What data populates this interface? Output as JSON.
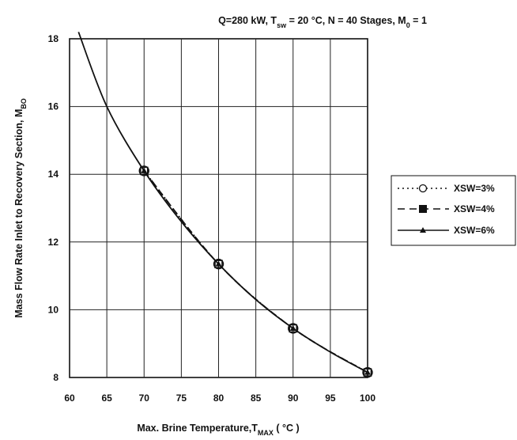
{
  "chart_data": {
    "type": "line",
    "title_parts": {
      "q": "Q=280 kW, T",
      "q_sub": "sw",
      "mid": " = 20 °C, N = 40 Stages, M",
      "m_sub": "0",
      "tail": " = 1"
    },
    "xlabel_parts": {
      "main": "Max. Brine Temperature,T",
      "sub": "MAX",
      "tail": " ( °C )"
    },
    "ylabel_parts": {
      "main": "Mass Flow Rate Inlet to Recovery Section, M",
      "sub": "BO"
    },
    "xlim": [
      60,
      100
    ],
    "ylim": [
      8,
      18
    ],
    "xticks": [
      60,
      65,
      70,
      75,
      80,
      85,
      90,
      95,
      100
    ],
    "yticks": [
      8,
      10,
      12,
      14,
      16,
      18
    ],
    "xtick_labels": [
      "60",
      "65",
      "70",
      "75",
      "80",
      "85",
      "90",
      "95",
      "100"
    ],
    "ytick_labels": [
      "8",
      "10",
      "12",
      "14",
      "16",
      "18"
    ],
    "grid": true,
    "legend_position": "right",
    "series": [
      {
        "name": "XSW=3%",
        "style": "dotted",
        "marker": "circle",
        "color": "#111111",
        "x": [
          70,
          80,
          90,
          100
        ],
        "y": [
          14.1,
          11.35,
          9.45,
          8.15
        ]
      },
      {
        "name": "XSW=4%",
        "style": "dashed",
        "marker": "square",
        "color": "#111111",
        "x": [
          70,
          80,
          90,
          100
        ],
        "y": [
          14.1,
          11.35,
          9.45,
          8.15
        ]
      },
      {
        "name": "XSW=6%",
        "style": "solid",
        "marker": "triangle",
        "color": "#111111",
        "x": [
          61.2,
          65,
          70,
          75,
          80,
          85,
          90,
          95,
          100
        ],
        "y": [
          18.2,
          16.0,
          14.1,
          12.6,
          11.35,
          10.3,
          9.45,
          8.75,
          8.15
        ]
      }
    ]
  }
}
